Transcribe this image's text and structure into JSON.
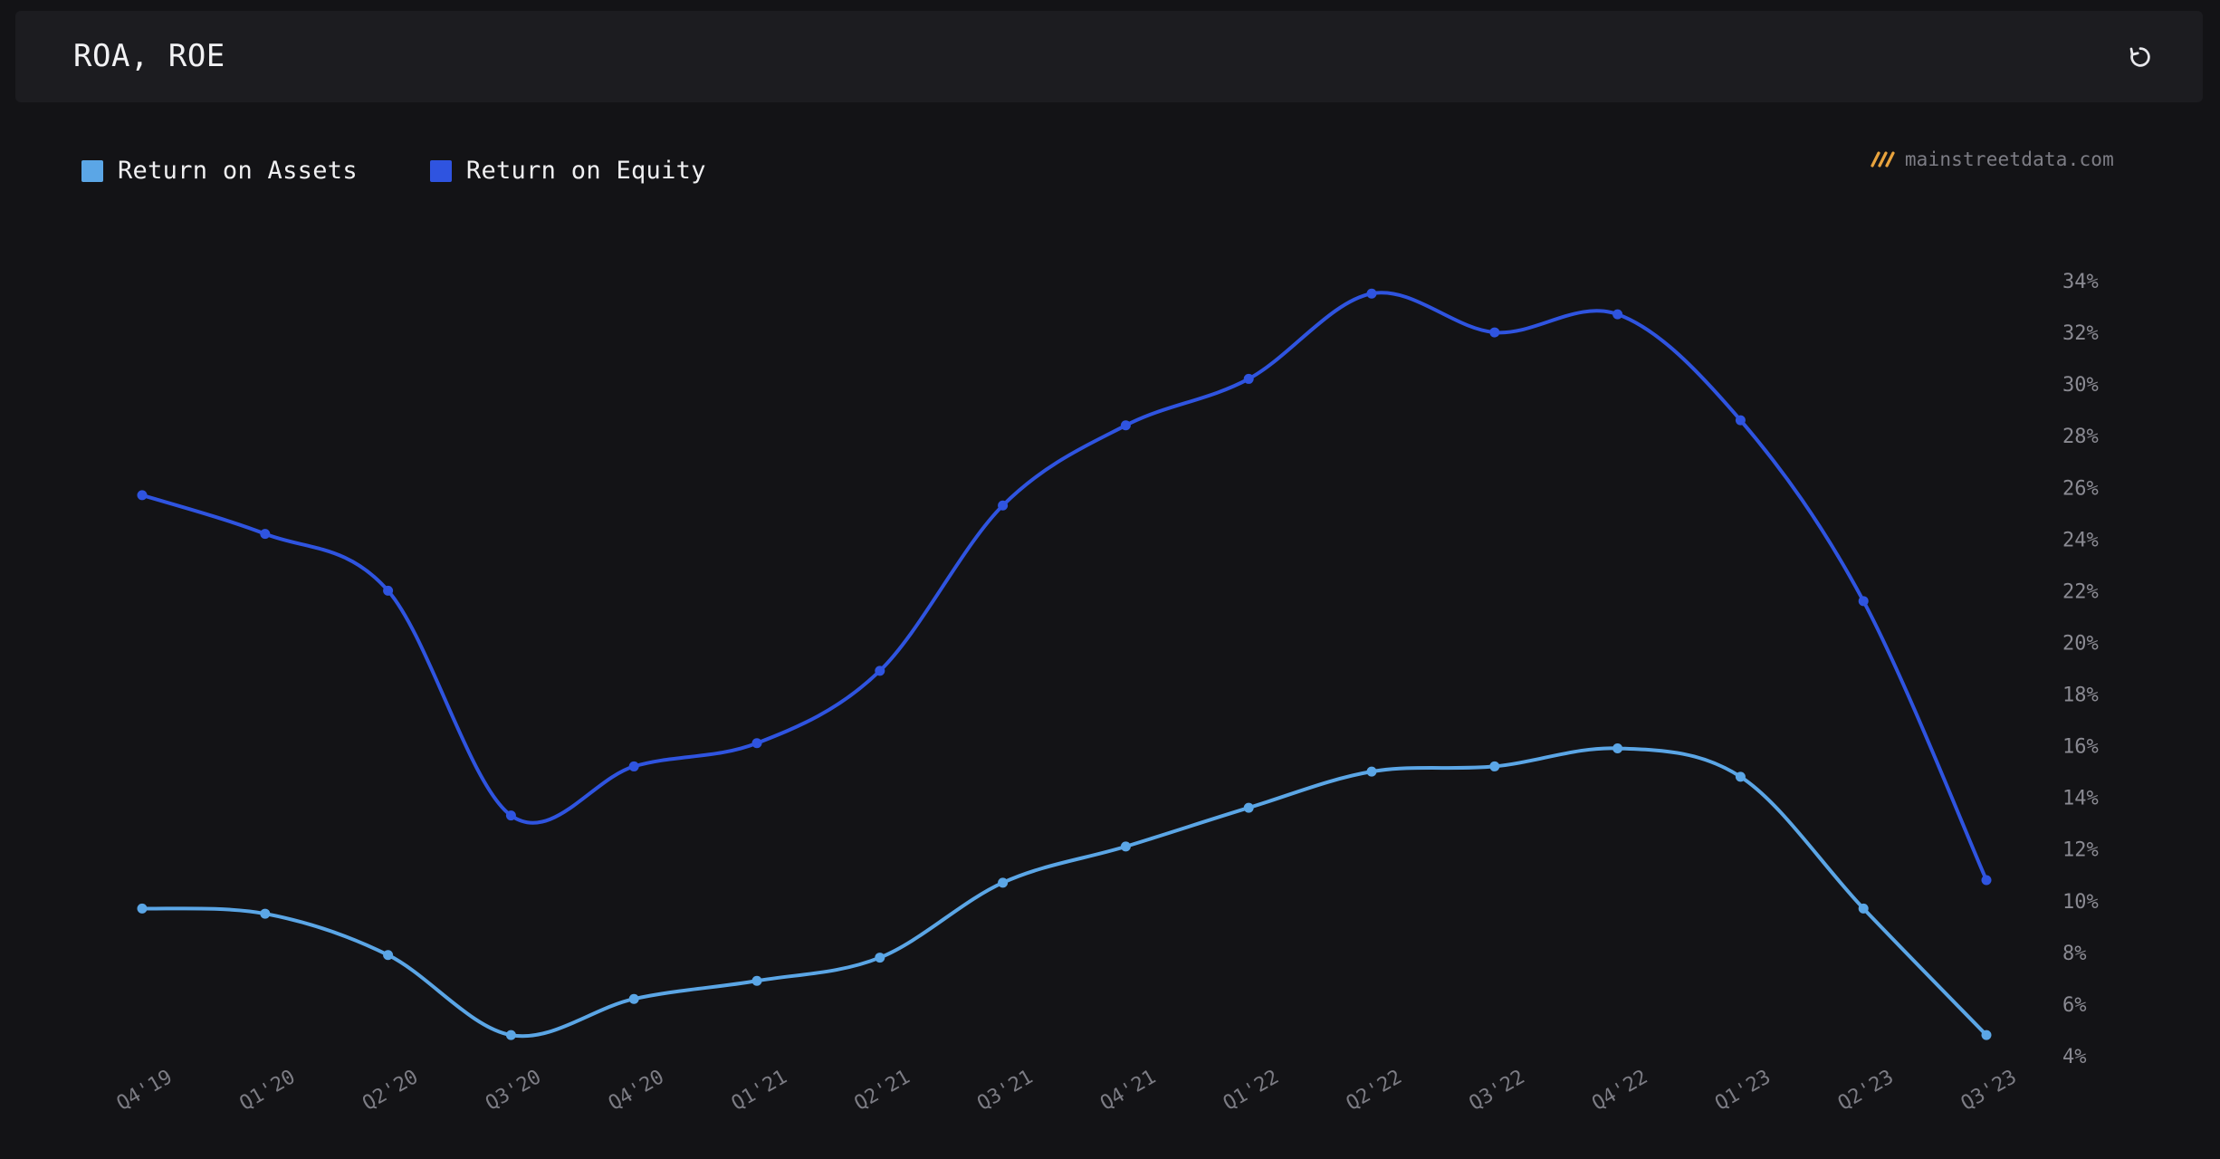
{
  "header": {
    "title": "ROA, ROE",
    "reset_icon": "reset-icon"
  },
  "brand": {
    "label": "mainstreetdata.com",
    "icon": "mainstreet-logo-icon",
    "color": "#e8a33d"
  },
  "legend": [
    {
      "label": "Return on Assets",
      "color": "#5ba6e6"
    },
    {
      "label": "Return on Equity",
      "color": "#2f54e0"
    }
  ],
  "chart_data": {
    "type": "line",
    "title": "ROA, ROE",
    "xlabel": "",
    "ylabel": "",
    "categories": [
      "Q4'19",
      "Q1'20",
      "Q2'20",
      "Q3'20",
      "Q4'20",
      "Q1'21",
      "Q2'21",
      "Q3'21",
      "Q4'21",
      "Q1'22",
      "Q2'22",
      "Q3'22",
      "Q4'22",
      "Q1'23",
      "Q2'23",
      "Q3'23"
    ],
    "series": [
      {
        "name": "Return on Assets",
        "color": "#5ba6e6",
        "values": [
          9.7,
          9.5,
          7.9,
          4.8,
          6.2,
          6.9,
          7.8,
          10.7,
          12.1,
          13.6,
          15.0,
          15.2,
          15.9,
          14.8,
          9.7,
          4.8
        ]
      },
      {
        "name": "Return on Equity",
        "color": "#2f54e0",
        "values": [
          25.7,
          24.2,
          22.0,
          13.3,
          15.2,
          16.1,
          18.9,
          25.3,
          28.4,
          30.2,
          33.5,
          32.0,
          32.7,
          28.6,
          21.6,
          10.8
        ]
      }
    ],
    "ylim": [
      4,
      34
    ],
    "yticks": [
      "34%",
      "32%",
      "30%",
      "28%",
      "26%",
      "24%",
      "22%",
      "20%",
      "18%",
      "16%",
      "14%",
      "12%",
      "10%",
      "8%",
      "6%",
      "4%"
    ],
    "y_axis_position": "right",
    "grid": false,
    "legend_position": "top-left"
  }
}
